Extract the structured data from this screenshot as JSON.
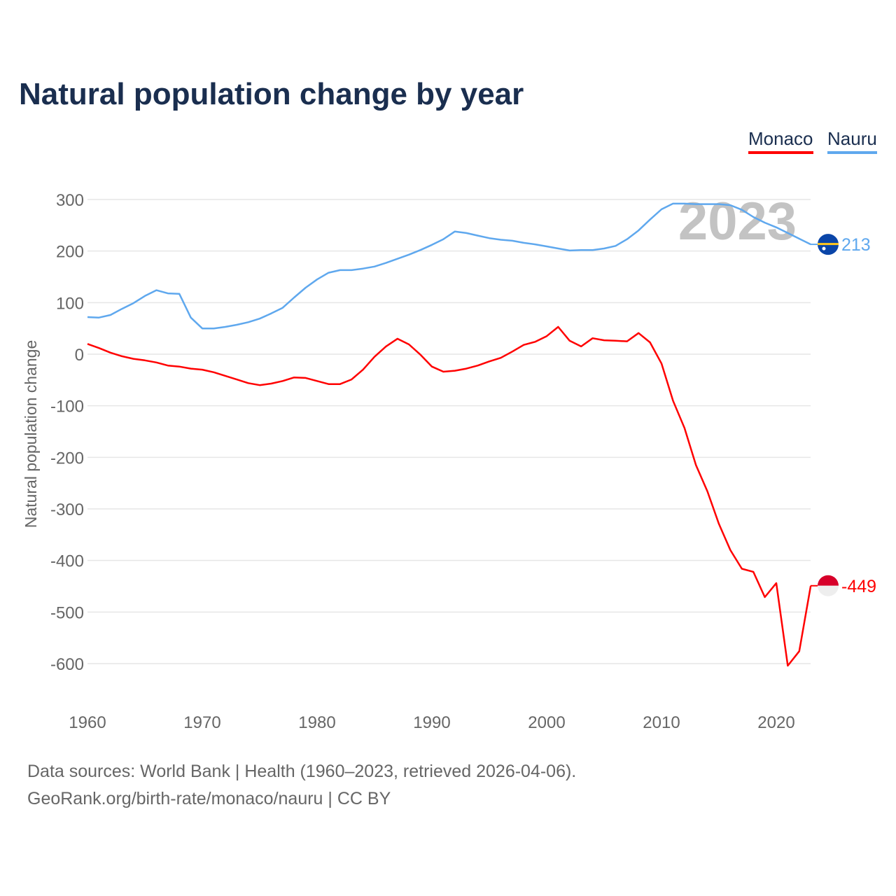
{
  "title": "Natural population change by year",
  "legend": [
    {
      "label": "Monaco",
      "color": "#ff0000"
    },
    {
      "label": "Nauru",
      "color": "#5fa8ee"
    }
  ],
  "year_watermark": "2023",
  "footer": {
    "line1": "Data sources: World Bank | Health (1960–2023, retrieved 2026-04-06).",
    "line2": "GeoRank.org/birth-rate/monaco/nauru | CC BY"
  },
  "chart_data": {
    "type": "line",
    "title": "Natural population change by year",
    "xlabel": "",
    "ylabel": "Natural population change",
    "xlim": [
      1960,
      2023
    ],
    "ylim": [
      -650,
      330
    ],
    "yticks": [
      300,
      200,
      100,
      0,
      -100,
      -200,
      -300,
      -400,
      -500,
      -600
    ],
    "xticks": [
      1960,
      1970,
      1980,
      1990,
      2000,
      2010,
      2020
    ],
    "grid": true,
    "legend_position": "top-right",
    "x_start": 1960,
    "series": [
      {
        "name": "Monaco",
        "color": "#ff0000",
        "end_label": "-449",
        "flag": "monaco",
        "values": [
          20,
          12,
          3,
          -4,
          -9,
          -12,
          -16,
          -22,
          -24,
          -28,
          -30,
          -35,
          -42,
          -49,
          -56,
          -60,
          -57,
          -52,
          -45,
          -46,
          -52,
          -58,
          -58,
          -49,
          -30,
          -5,
          15,
          30,
          19,
          -1,
          -24,
          -34,
          -32,
          -28,
          -22,
          -14,
          -7,
          5,
          18,
          24,
          35,
          53,
          26,
          15,
          31,
          27,
          26,
          25,
          41,
          23,
          -18,
          -90,
          -143,
          -215,
          -266,
          -329,
          -380,
          -416,
          -422,
          -471,
          -444,
          -604,
          -576,
          -449
        ]
      },
      {
        "name": "Nauru",
        "color": "#5fa8ee",
        "end_label": "213",
        "flag": "nauru",
        "values": [
          72,
          71,
          76,
          88,
          99,
          113,
          124,
          118,
          117,
          71,
          50,
          50,
          53,
          57,
          62,
          69,
          79,
          90,
          110,
          129,
          145,
          158,
          163,
          163,
          166,
          170,
          177,
          185,
          193,
          202,
          212,
          223,
          238,
          235,
          230,
          225,
          222,
          220,
          216,
          213,
          209,
          205,
          201,
          202,
          202,
          205,
          210,
          223,
          240,
          261,
          281,
          292,
          292,
          291,
          291,
          291,
          289,
          280,
          266,
          255,
          246,
          235,
          224,
          213
        ]
      }
    ]
  }
}
